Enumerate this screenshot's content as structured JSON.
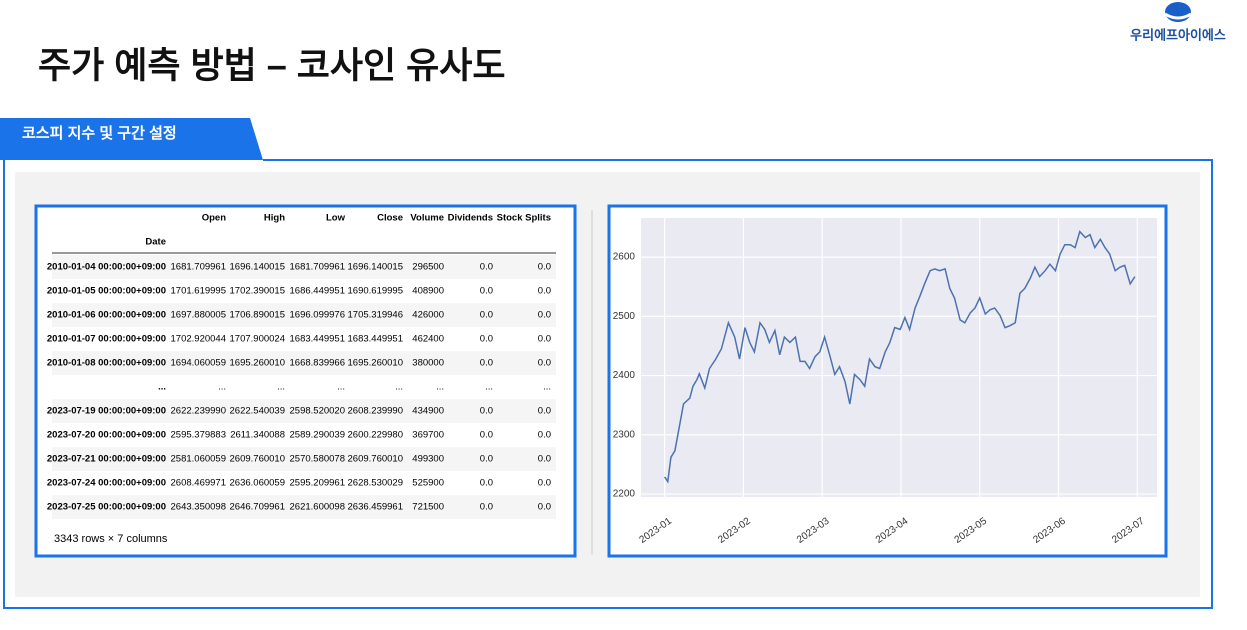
{
  "header": {
    "title": "주가 예측 방법 – 코사인 유사도",
    "logo": "우리에프아이에스"
  },
  "section": {
    "label": "코스피 지수 및 구간 설정"
  },
  "table": {
    "index_name": "Date",
    "columns": [
      "Open",
      "High",
      "Low",
      "Close",
      "Volume",
      "Dividends",
      "Stock Splits"
    ],
    "rows": [
      [
        "2010-01-04 00:00:00+09:00",
        "1681.709961",
        "1696.140015",
        "1681.709961",
        "1696.140015",
        "296500",
        "0.0",
        "0.0"
      ],
      [
        "2010-01-05 00:00:00+09:00",
        "1701.619995",
        "1702.390015",
        "1686.449951",
        "1690.619995",
        "408900",
        "0.0",
        "0.0"
      ],
      [
        "2010-01-06 00:00:00+09:00",
        "1697.880005",
        "1706.890015",
        "1696.099976",
        "1705.319946",
        "426000",
        "0.0",
        "0.0"
      ],
      [
        "2010-01-07 00:00:00+09:00",
        "1702.920044",
        "1707.900024",
        "1683.449951",
        "1683.449951",
        "462400",
        "0.0",
        "0.0"
      ],
      [
        "2010-01-08 00:00:00+09:00",
        "1694.060059",
        "1695.260010",
        "1668.839966",
        "1695.260010",
        "380000",
        "0.0",
        "0.0"
      ],
      [
        "...",
        "...",
        "...",
        "...",
        "...",
        "...",
        "...",
        "..."
      ],
      [
        "2023-07-19 00:00:00+09:00",
        "2622.239990",
        "2622.540039",
        "2598.520020",
        "2608.239990",
        "434900",
        "0.0",
        "0.0"
      ],
      [
        "2023-07-20 00:00:00+09:00",
        "2595.379883",
        "2611.340088",
        "2589.290039",
        "2600.229980",
        "369700",
        "0.0",
        "0.0"
      ],
      [
        "2023-07-21 00:00:00+09:00",
        "2581.060059",
        "2609.760010",
        "2570.580078",
        "2609.760010",
        "499300",
        "0.0",
        "0.0"
      ],
      [
        "2023-07-24 00:00:00+09:00",
        "2608.469971",
        "2636.060059",
        "2595.209961",
        "2628.530029",
        "525900",
        "0.0",
        "0.0"
      ],
      [
        "2023-07-25 00:00:00+09:00",
        "2643.350098",
        "2646.709961",
        "2621.600098",
        "2636.459961",
        "721500",
        "0.0",
        "0.0"
      ]
    ],
    "footer": "3343 rows × 7 columns"
  },
  "chart_data": {
    "type": "line",
    "x": [
      0.0,
      0.04,
      0.08,
      0.13,
      0.19,
      0.24,
      0.32,
      0.36,
      0.41,
      0.44,
      0.51,
      0.57,
      0.65,
      0.72,
      0.81,
      0.89,
      0.95,
      1.02,
      1.08,
      1.14,
      1.21,
      1.27,
      1.33,
      1.4,
      1.46,
      1.52,
      1.59,
      1.66,
      1.72,
      1.78,
      1.84,
      1.91,
      1.97,
      2.03,
      2.1,
      2.16,
      2.22,
      2.29,
      2.35,
      2.41,
      2.48,
      2.54,
      2.6,
      2.67,
      2.73,
      2.8,
      2.86,
      2.92,
      2.99,
      3.05,
      3.11,
      3.18,
      3.24,
      3.3,
      3.37,
      3.43,
      3.49,
      3.56,
      3.62,
      3.68,
      3.75,
      3.81,
      3.88,
      3.94,
      4.0,
      4.07,
      4.13,
      4.19,
      4.26,
      4.32,
      4.38,
      4.45,
      4.51,
      4.57,
      4.64,
      4.7,
      4.76,
      4.83,
      4.89,
      4.96,
      5.02,
      5.08,
      5.15,
      5.21,
      5.27,
      5.34,
      5.4,
      5.46,
      5.53,
      5.59,
      5.65,
      5.72,
      5.78,
      5.84,
      5.91,
      5.97
    ],
    "series": [
      {
        "color": "#4c72b0",
        "values": [
          2229,
          2221,
          2262,
          2273,
          2316,
          2352,
          2362,
          2382,
          2393,
          2403,
          2379,
          2412,
          2428,
          2445,
          2489,
          2465,
          2428,
          2481,
          2456,
          2440,
          2489,
          2478,
          2456,
          2476,
          2435,
          2465,
          2456,
          2465,
          2424,
          2424,
          2412,
          2432,
          2440,
          2465,
          2432,
          2402,
          2415,
          2390,
          2352,
          2402,
          2393,
          2382,
          2428,
          2415,
          2412,
          2440,
          2456,
          2481,
          2478,
          2498,
          2478,
          2514,
          2534,
          2555,
          2577,
          2580,
          2577,
          2580,
          2547,
          2531,
          2494,
          2489,
          2506,
          2514,
          2531,
          2504,
          2511,
          2514,
          2501,
          2481,
          2484,
          2489,
          2539,
          2547,
          2564,
          2583,
          2567,
          2577,
          2588,
          2577,
          2605,
          2621,
          2621,
          2616,
          2643,
          2633,
          2638,
          2616,
          2630,
          2616,
          2605,
          2577,
          2583,
          2586,
          2555,
          2567
        ]
      }
    ],
    "xlim": [
      -0.3,
      6.25
    ],
    "xticks": [
      {
        "value": 0,
        "label": "2023-01"
      },
      {
        "value": 1,
        "label": "2023-02"
      },
      {
        "value": 2,
        "label": "2023-03"
      },
      {
        "value": 3,
        "label": "2023-04"
      },
      {
        "value": 4,
        "label": "2023-05"
      },
      {
        "value": 5,
        "label": "2023-06"
      },
      {
        "value": 6,
        "label": "2023-07"
      }
    ],
    "ylim": [
      2195,
      2666
    ],
    "yticks": [
      2200,
      2300,
      2400,
      2500,
      2600
    ],
    "grid": true
  }
}
